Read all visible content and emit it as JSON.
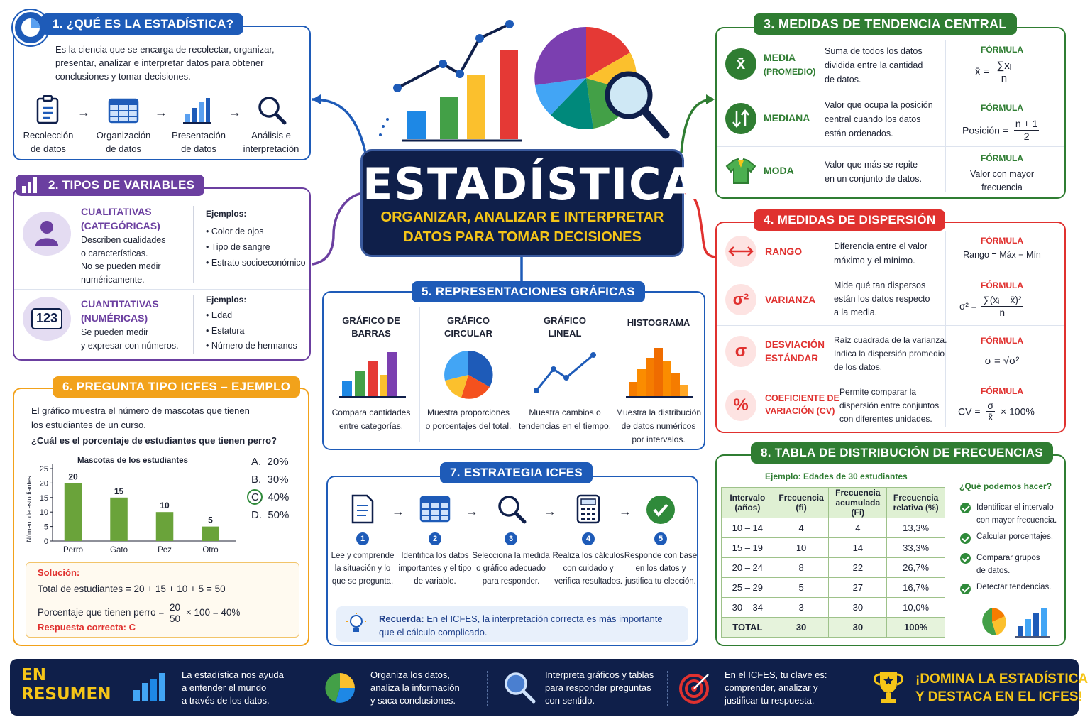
{
  "center": {
    "title": "ESTADÍSTICA",
    "subtitle_line1": "ORGANIZAR, ANALIZAR E INTERPRETAR",
    "subtitle_line2": "DATOS PARA TOMAR DECISIONES"
  },
  "s1": {
    "title": "1. ¿QUÉ ES LA ESTADÍSTICA?",
    "text_l1": "Es la ciencia que se encarga de recolectar, organizar,",
    "text_l2": "presentar, analizar e interpretar datos para obtener",
    "text_l3": "conclusiones y tomar decisiones.",
    "steps": [
      {
        "l1": "Recolección",
        "l2": "de datos",
        "icon": "clipboard-icon"
      },
      {
        "l1": "Organización",
        "l2": "de datos",
        "icon": "table-icon"
      },
      {
        "l1": "Presentación",
        "l2": "de datos",
        "icon": "bar-chart-icon"
      },
      {
        "l1": "Análisis e",
        "l2": "interpretación",
        "icon": "magnifier-icon"
      }
    ]
  },
  "s2": {
    "title": "2. TIPOS DE VARIABLES",
    "qual": {
      "name_l1": "CUALITATIVAS",
      "name_l2": "(CATEGÓRICAS)",
      "d1": "Describen cualidades",
      "d2": "o características.",
      "d3": "No se pueden medir",
      "d4": "numéricamente.",
      "examples_label": "Ejemplos:",
      "examples": [
        "Color de ojos",
        "Tipo de sangre",
        "Estrato socioeconómico"
      ]
    },
    "quant": {
      "name_l1": "CUANTITATIVAS",
      "name_l2": "(NUMÉRICAS)",
      "badge": "123",
      "d1": "Se pueden medir",
      "d2": "y expresar con números.",
      "examples_label": "Ejemplos:",
      "examples": [
        "Edad",
        "Estatura",
        "Número de hermanos"
      ]
    }
  },
  "s3": {
    "title": "3. MEDIDAS DE TENDENCIA CENTRAL",
    "rows": [
      {
        "name_l1": "MEDIA",
        "name_l2": "(PROMEDIO)",
        "d1": "Suma de todos los datos",
        "d2": "dividida entre la cantidad",
        "d3": "de datos.",
        "f_label": "FÓRMULA",
        "icon_text": "x̄"
      },
      {
        "name_l1": "MEDIANA",
        "d1": "Valor que ocupa la posición",
        "d2": "central cuando los datos",
        "d3": "están ordenados.",
        "f_label": "FÓRMULA",
        "f_text": "Posición =",
        "f_num": "n + 1",
        "f_den": "2"
      },
      {
        "name_l1": "MODA",
        "d1": "Valor que más se repite",
        "d2": "en un conjunto de datos.",
        "f_label": "FÓRMULA",
        "f_l1": "Valor con mayor",
        "f_l2": "frecuencia"
      }
    ],
    "mean_formula": {
      "lhs": "x̄",
      "eq": "=",
      "num": "∑xᵢ",
      "den": "n"
    }
  },
  "s4": {
    "title": "4. MEDIDAS DE DISPERSIÓN",
    "rows": [
      {
        "name_l1": "RANGO",
        "d1": "Diferencia entre el valor",
        "d2": "máximo y el mínimo.",
        "f_label": "FÓRMULA",
        "f_text": "Rango = Máx − Mín"
      },
      {
        "name_l1": "VARIANZA",
        "d1": "Mide qué tan dispersos",
        "d2": "están los datos respecto",
        "d3": "a la media.",
        "f_label": "FÓRMULA",
        "icon_text": "σ²",
        "f_lhs": "σ² =",
        "f_num": "∑(xᵢ − x̄)²",
        "f_den": "n"
      },
      {
        "name_l1": "DESVIACIÓN",
        "name_l2": "ESTÁNDAR",
        "d1": "Raíz cuadrada de la varianza.",
        "d2": "Indica la dispersión promedio",
        "d3": "de los datos.",
        "f_label": "FÓRMULA",
        "icon_text": "σ",
        "f_text": "σ = √σ²"
      },
      {
        "name_l1": "COEFICIENTE DE",
        "name_l2": "VARIACIÓN (CV)",
        "d1": "Permite comparar la",
        "d2": "dispersión entre conjuntos",
        "d3": "con diferentes unidades.",
        "f_label": "FÓRMULA",
        "icon_text": "%",
        "f_lhs": "CV =",
        "f_num": "σ",
        "f_den": "x̄",
        "f_rhs": "× 100%"
      }
    ]
  },
  "s5": {
    "title": "5. REPRESENTACIONES GRÁFICAS",
    "cols": [
      {
        "t1": "GRÁFICO DE",
        "t2": "BARRAS",
        "d1": "Compara cantidades",
        "d2": "entre categorías."
      },
      {
        "t1": "GRÁFICO",
        "t2": "CIRCULAR",
        "d1": "Muestra proporciones",
        "d2": "o porcentajes del total."
      },
      {
        "t1": "GRÁFICO",
        "t2": "LINEAL",
        "d1": "Muestra cambios o",
        "d2": "tendencias en el tiempo."
      },
      {
        "t1": "HISTOGRAMA",
        "t2": "",
        "d1": "Muestra la distribución",
        "d2": "de datos numéricos",
        "d3": "por intervalos."
      }
    ]
  },
  "s6": {
    "title": "6. PREGUNTA TIPO ICFES – EJEMPLO",
    "q1": "El gráfico muestra el número de mascotas que tienen",
    "q2": "los estudiantes de un curso.",
    "q3": "¿Cuál es el porcentaje de estudiantes que tienen perro?",
    "options": [
      {
        "letter": "A.",
        "text": "20%"
      },
      {
        "letter": "B.",
        "text": "30%"
      },
      {
        "letter": "C.",
        "text": "40%"
      },
      {
        "letter": "D.",
        "text": "50%"
      }
    ],
    "solution_label": "Solución:",
    "sol_l1": "Total de estudiantes = 20 + 15 + 10 + 5 = 50",
    "sol_l2_pre": "Porcentaje que tienen perro =",
    "sol_l2_num": "20",
    "sol_l2_den": "50",
    "sol_l2_post": "× 100 = 40%",
    "answer": "Respuesta correcta: C"
  },
  "chart_data": {
    "type": "bar",
    "title": "Mascotas de los estudiantes",
    "ylabel": "Número de estudiantes",
    "xlabel": "",
    "categories": [
      "Perro",
      "Gato",
      "Pez",
      "Otro"
    ],
    "values": [
      20,
      15,
      10,
      5
    ],
    "yticks": [
      0,
      5,
      10,
      15,
      20,
      25
    ],
    "ylim": [
      0,
      25
    ],
    "grid": false,
    "bar_color": "#6aa33a"
  },
  "s7": {
    "title": "7. ESTRATEGIA ICFES",
    "steps": [
      {
        "num": "1",
        "l1": "Lee y comprende",
        "l2": "la situación y lo",
        "l3": "que se pregunta."
      },
      {
        "num": "2",
        "l1": "Identifica los datos",
        "l2": "importantes y el tipo",
        "l3": "de variable."
      },
      {
        "num": "3",
        "l1": "Selecciona la medida",
        "l2": "o gráfico adecuado",
        "l3": "para responder."
      },
      {
        "num": "4",
        "l1": "Realiza los cálculos",
        "l2": "con cuidado y",
        "l3": "verifica resultados."
      },
      {
        "num": "5",
        "l1": "Responde con base",
        "l2": "en los datos y",
        "l3": "justifica tu elección."
      }
    ],
    "remember_label": "Recuerda:",
    "remember_l1": "En el ICFES, la interpretación correcta es más importante",
    "remember_l2": "que el cálculo complicado."
  },
  "s8": {
    "title": "8. TABLA DE DISTRIBUCIÓN DE FRECUENCIAS",
    "example": "Ejemplo: Edades de 30 estudiantes",
    "headers": [
      [
        "Intervalo",
        "(años)"
      ],
      [
        "Frecuencia",
        "(fi)"
      ],
      [
        "Frecuencia",
        "acumulada (Fi)"
      ],
      [
        "Frecuencia",
        "relativa (%)"
      ]
    ],
    "rows": [
      [
        "10 – 14",
        "4",
        "4",
        "13,3%"
      ],
      [
        "15 – 19",
        "10",
        "14",
        "33,3%"
      ],
      [
        "20 – 24",
        "8",
        "22",
        "26,7%"
      ],
      [
        "25 – 29",
        "5",
        "27",
        "16,7%"
      ],
      [
        "30 – 34",
        "3",
        "30",
        "10,0%"
      ]
    ],
    "total": [
      "TOTAL",
      "30",
      "30",
      "100%"
    ],
    "what_label": "¿Qué podemos hacer?",
    "actions": [
      {
        "l1": "Identificar el intervalo",
        "l2": "con mayor frecuencia."
      },
      {
        "l1": "Calcular porcentajes.",
        "l2": ""
      },
      {
        "l1": "Comparar grupos",
        "l2": "de datos."
      },
      {
        "l1": "Detectar tendencias.",
        "l2": ""
      }
    ]
  },
  "footer": {
    "label_l1": "EN",
    "label_l2": "RESUMEN",
    "items": [
      {
        "l1": "La estadística nos ayuda",
        "l2": "a entender el mundo",
        "l3": "a través de los datos."
      },
      {
        "l1": "Organiza los datos,",
        "l2": "analiza la información",
        "l3": "y saca conclusiones."
      },
      {
        "l1": "Interpreta gráficos y tablas",
        "l2": "para responder preguntas",
        "l3": "con sentido."
      },
      {
        "l1": "En el ICFES, tu clave es:",
        "l2": "comprender, analizar y",
        "l3": "justificar tu respuesta."
      }
    ],
    "cta_l1": "¡DOMINA LA ESTADÍSTICA",
    "cta_l2": "Y DESTACA EN EL ICFES!"
  },
  "colors": {
    "blue": "#1e5bb8",
    "purple": "#6b3fa0",
    "green": "#2f7d32",
    "red": "#e0312f",
    "orange": "#f2a21b",
    "navy": "#0f1f4a",
    "gold": "#f5c518"
  }
}
